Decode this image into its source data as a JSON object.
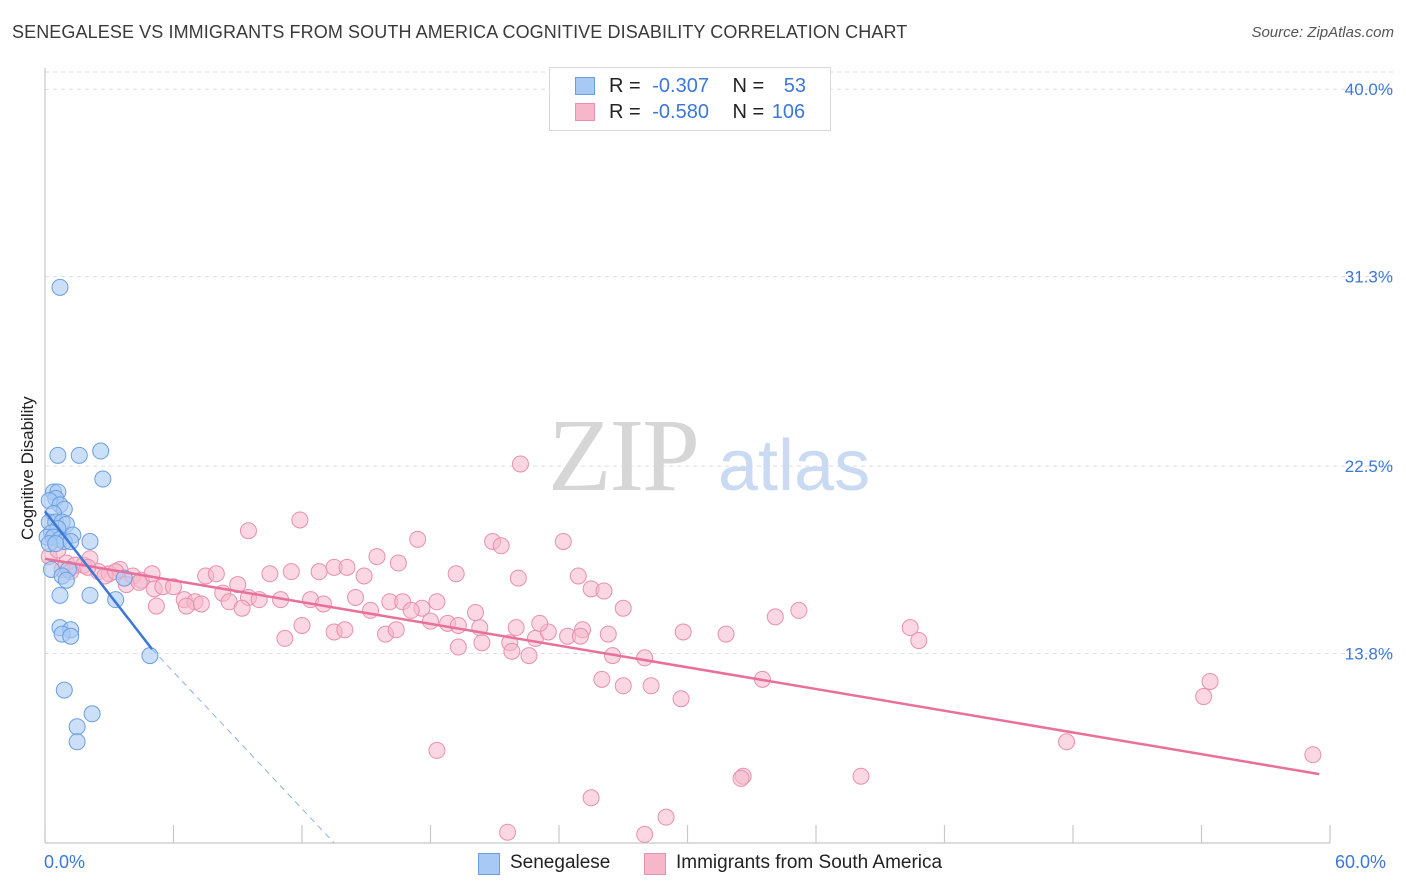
{
  "title": "SENEGALESE VS IMMIGRANTS FROM SOUTH AMERICA COGNITIVE DISABILITY CORRELATION CHART",
  "source": "Source: ZipAtlas.com",
  "watermark": {
    "zip": "ZIP",
    "atlas": "atlas"
  },
  "legend_top": {
    "r_label": "R =",
    "n_label": "N =",
    "rows": [
      {
        "r": "-0.307",
        "n": "53"
      },
      {
        "r": "-0.580",
        "n": "106"
      }
    ]
  },
  "colors": {
    "blue": "#3b78d8",
    "blue_fill": "#a9c9f5",
    "pink": "#e8709a",
    "pink_fill": "#f6b7cb",
    "grid": "#dddddd",
    "axis_text": "#3b78d8"
  },
  "chart_data": {
    "type": "scatter",
    "title": "SENEGALESE VS IMMIGRANTS FROM SOUTH AMERICA COGNITIVE DISABILITY CORRELATION CHART",
    "xlabel": "",
    "ylabel": "Cognitive Disability",
    "xlim": [
      0,
      60
    ],
    "ylim": [
      5,
      40.8
    ],
    "x_tick_labels": [
      "0.0%",
      "60.0%"
    ],
    "y_ticks": [
      13.8,
      22.5,
      31.3,
      40.0
    ],
    "y_tick_labels": [
      "13.8%",
      "22.5%",
      "31.3%",
      "40.0%"
    ],
    "legend": [
      "Senegalese",
      "Immigrants from South America"
    ],
    "series": [
      {
        "name": "Senegalese",
        "r": -0.307,
        "n": 53,
        "trend": {
          "x1": 0.0,
          "y1": 20.4,
          "x2": 5.0,
          "y2": 14.0
        },
        "trend_dashed": {
          "x1": 5.0,
          "y1": 14.0,
          "x2": 13.5,
          "y2": 5.0
        },
        "points": [
          [
            0.7,
            30.8
          ],
          [
            0.6,
            23.0
          ],
          [
            1.6,
            23.0
          ],
          [
            2.6,
            23.2
          ],
          [
            2.7,
            21.9
          ],
          [
            0.4,
            21.3
          ],
          [
            0.6,
            21.3
          ],
          [
            0.5,
            21.0
          ],
          [
            0.2,
            20.9
          ],
          [
            0.7,
            20.7
          ],
          [
            0.9,
            20.5
          ],
          [
            0.4,
            20.3
          ],
          [
            0.2,
            19.9
          ],
          [
            0.5,
            19.9
          ],
          [
            0.8,
            19.9
          ],
          [
            1.0,
            19.8
          ],
          [
            0.6,
            19.6
          ],
          [
            0.3,
            19.4
          ],
          [
            1.3,
            19.3
          ],
          [
            0.1,
            19.2
          ],
          [
            0.4,
            19.2
          ],
          [
            0.7,
            19.1
          ],
          [
            0.9,
            19.0
          ],
          [
            1.2,
            19.0
          ],
          [
            2.1,
            19.0
          ],
          [
            0.2,
            18.9
          ],
          [
            0.5,
            18.9
          ],
          [
            0.3,
            17.7
          ],
          [
            1.1,
            17.7
          ],
          [
            0.8,
            17.4
          ],
          [
            1.0,
            17.2
          ],
          [
            3.7,
            17.3
          ],
          [
            0.7,
            16.5
          ],
          [
            2.1,
            16.5
          ],
          [
            3.3,
            16.3
          ],
          [
            0.7,
            15.0
          ],
          [
            1.2,
            14.9
          ],
          [
            0.8,
            14.7
          ],
          [
            1.2,
            14.6
          ],
          [
            4.9,
            13.7
          ],
          [
            0.9,
            12.1
          ],
          [
            2.2,
            11.0
          ],
          [
            1.5,
            10.4
          ],
          [
            1.5,
            9.7
          ]
        ]
      },
      {
        "name": "Immigrants from South America",
        "r": -0.58,
        "n": 106,
        "trend": {
          "x1": 0.0,
          "y1": 18.2,
          "x2": 59.5,
          "y2": 8.2
        },
        "points": [
          [
            0.2,
            18.3
          ],
          [
            0.6,
            18.6
          ],
          [
            1.0,
            18.0
          ],
          [
            1.4,
            17.9
          ],
          [
            1.8,
            17.9
          ],
          [
            2.1,
            18.2
          ],
          [
            2.5,
            17.6
          ],
          [
            3.0,
            17.5
          ],
          [
            3.5,
            17.7
          ],
          [
            4.1,
            17.4
          ],
          [
            4.5,
            17.2
          ],
          [
            5.0,
            17.5
          ],
          [
            0.8,
            17.7
          ],
          [
            1.2,
            17.6
          ],
          [
            2.0,
            17.8
          ],
          [
            2.8,
            17.4
          ],
          [
            3.3,
            17.6
          ],
          [
            3.8,
            17.0
          ],
          [
            4.4,
            17.1
          ],
          [
            5.1,
            16.8
          ],
          [
            5.5,
            16.9
          ],
          [
            6.0,
            16.9
          ],
          [
            6.5,
            16.3
          ],
          [
            7.0,
            16.2
          ],
          [
            7.5,
            17.4
          ],
          [
            8.0,
            17.5
          ],
          [
            8.3,
            16.6
          ],
          [
            9.0,
            17.0
          ],
          [
            9.5,
            16.4
          ],
          [
            10.0,
            16.3
          ],
          [
            10.5,
            17.5
          ],
          [
            5.2,
            16.0
          ],
          [
            6.6,
            16.0
          ],
          [
            7.3,
            16.1
          ],
          [
            8.6,
            16.2
          ],
          [
            9.2,
            15.9
          ],
          [
            11.0,
            16.3
          ],
          [
            12.4,
            16.3
          ],
          [
            11.5,
            17.6
          ],
          [
            12.8,
            17.6
          ],
          [
            13.5,
            17.8
          ],
          [
            14.1,
            17.8
          ],
          [
            14.9,
            17.4
          ],
          [
            9.5,
            19.5
          ],
          [
            11.9,
            20.0
          ],
          [
            15.5,
            18.3
          ],
          [
            16.5,
            18.0
          ],
          [
            17.4,
            19.1
          ],
          [
            19.2,
            17.5
          ],
          [
            20.9,
            19.0
          ],
          [
            21.3,
            18.8
          ],
          [
            22.1,
            17.3
          ],
          [
            24.2,
            19.0
          ],
          [
            24.9,
            17.4
          ],
          [
            25.5,
            16.8
          ],
          [
            26.1,
            16.7
          ],
          [
            13.0,
            16.1
          ],
          [
            14.5,
            16.4
          ],
          [
            15.2,
            15.8
          ],
          [
            16.1,
            16.2
          ],
          [
            16.7,
            16.2
          ],
          [
            17.6,
            15.9
          ],
          [
            18.3,
            16.2
          ],
          [
            12.0,
            15.1
          ],
          [
            13.5,
            14.8
          ],
          [
            11.2,
            14.5
          ],
          [
            18.8,
            15.2
          ],
          [
            19.3,
            15.1
          ],
          [
            20.3,
            15.0
          ],
          [
            22.0,
            15.0
          ],
          [
            22.9,
            14.5
          ],
          [
            23.5,
            14.8
          ],
          [
            24.4,
            14.6
          ],
          [
            25.1,
            14.9
          ],
          [
            21.7,
            14.3
          ],
          [
            26.3,
            14.7
          ],
          [
            19.3,
            14.1
          ],
          [
            20.4,
            14.3
          ],
          [
            21.8,
            13.9
          ],
          [
            22.6,
            13.7
          ],
          [
            15.9,
            14.7
          ],
          [
            14.0,
            14.9
          ],
          [
            17.1,
            15.8
          ],
          [
            18.0,
            15.3
          ],
          [
            16.4,
            14.9
          ],
          [
            23.1,
            15.2
          ],
          [
            20.1,
            15.7
          ],
          [
            27.0,
            15.9
          ],
          [
            29.8,
            14.8
          ],
          [
            31.8,
            14.7
          ],
          [
            34.1,
            15.5
          ],
          [
            35.2,
            15.8
          ],
          [
            40.4,
            15.0
          ],
          [
            40.8,
            14.4
          ],
          [
            28.0,
            13.6
          ],
          [
            26.0,
            12.6
          ],
          [
            27.0,
            12.3
          ],
          [
            28.3,
            12.3
          ],
          [
            33.5,
            12.6
          ],
          [
            29.7,
            11.7
          ],
          [
            22.2,
            22.6
          ],
          [
            18.3,
            9.3
          ],
          [
            25.5,
            7.1
          ],
          [
            29.0,
            6.2
          ],
          [
            28.0,
            5.4
          ],
          [
            21.6,
            5.5
          ],
          [
            32.6,
            8.1
          ],
          [
            32.5,
            8.0
          ],
          [
            38.1,
            8.1
          ],
          [
            47.7,
            9.7
          ],
          [
            54.1,
            11.8
          ],
          [
            54.4,
            12.5
          ],
          [
            59.2,
            9.1
          ],
          [
            25.0,
            14.6
          ],
          [
            26.5,
            13.7
          ]
        ]
      }
    ]
  }
}
